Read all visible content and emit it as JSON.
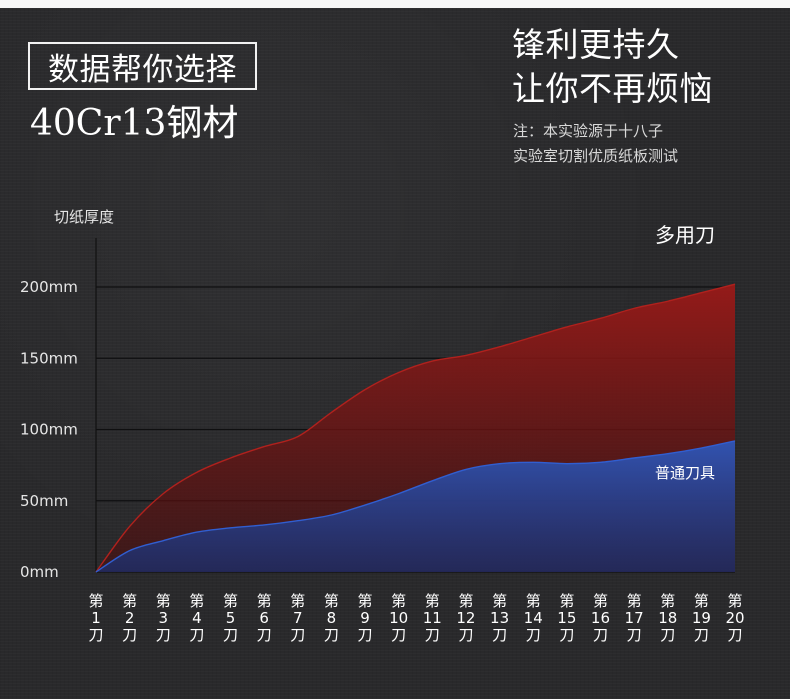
{
  "header": {
    "boxed_title": "数据帮你选择",
    "main_title": "40Cr13钢材",
    "slogan_line1": "锋利更持久",
    "slogan_line2": "让你不再烦恼",
    "note_line1": "注：本实验源于十八子",
    "note_line2": "实验室切割优质纸板测试"
  },
  "chart_data": {
    "type": "area",
    "ylabel": "切纸厚度",
    "y_unit": "mm",
    "ylim": [
      0,
      200
    ],
    "y_ticks": [
      "200mm",
      "150mm",
      "100mm",
      "50mm",
      "0mm"
    ],
    "categories": [
      [
        "第",
        "1",
        "刀"
      ],
      [
        "第",
        "2",
        "刀"
      ],
      [
        "第",
        "3",
        "刀"
      ],
      [
        "第",
        "4",
        "刀"
      ],
      [
        "第",
        "5",
        "刀"
      ],
      [
        "第",
        "6",
        "刀"
      ],
      [
        "第",
        "7",
        "刀"
      ],
      [
        "第",
        "8",
        "刀"
      ],
      [
        "第",
        "9",
        "刀"
      ],
      [
        "第",
        "10",
        "刀"
      ],
      [
        "第",
        "11",
        "刀"
      ],
      [
        "第",
        "12",
        "刀"
      ],
      [
        "第",
        "13",
        "刀"
      ],
      [
        "第",
        "14",
        "刀"
      ],
      [
        "第",
        "15",
        "刀"
      ],
      [
        "第",
        "16",
        "刀"
      ],
      [
        "第",
        "17",
        "刀"
      ],
      [
        "第",
        "18",
        "刀"
      ],
      [
        "第",
        "19",
        "刀"
      ],
      [
        "第",
        "20",
        "刀"
      ]
    ],
    "series": [
      {
        "name": "多用刀",
        "color": "#8c1515",
        "values": [
          0,
          32,
          55,
          70,
          80,
          88,
          95,
          112,
          128,
          140,
          148,
          152,
          158,
          165,
          172,
          178,
          185,
          190,
          196,
          202
        ]
      },
      {
        "name": "普通刀具",
        "color": "#1d3a8c",
        "values": [
          0,
          15,
          22,
          28,
          31,
          33,
          36,
          40,
          47,
          55,
          64,
          72,
          76,
          77,
          76,
          77,
          80,
          83,
          87,
          92
        ]
      }
    ],
    "grid": true
  }
}
